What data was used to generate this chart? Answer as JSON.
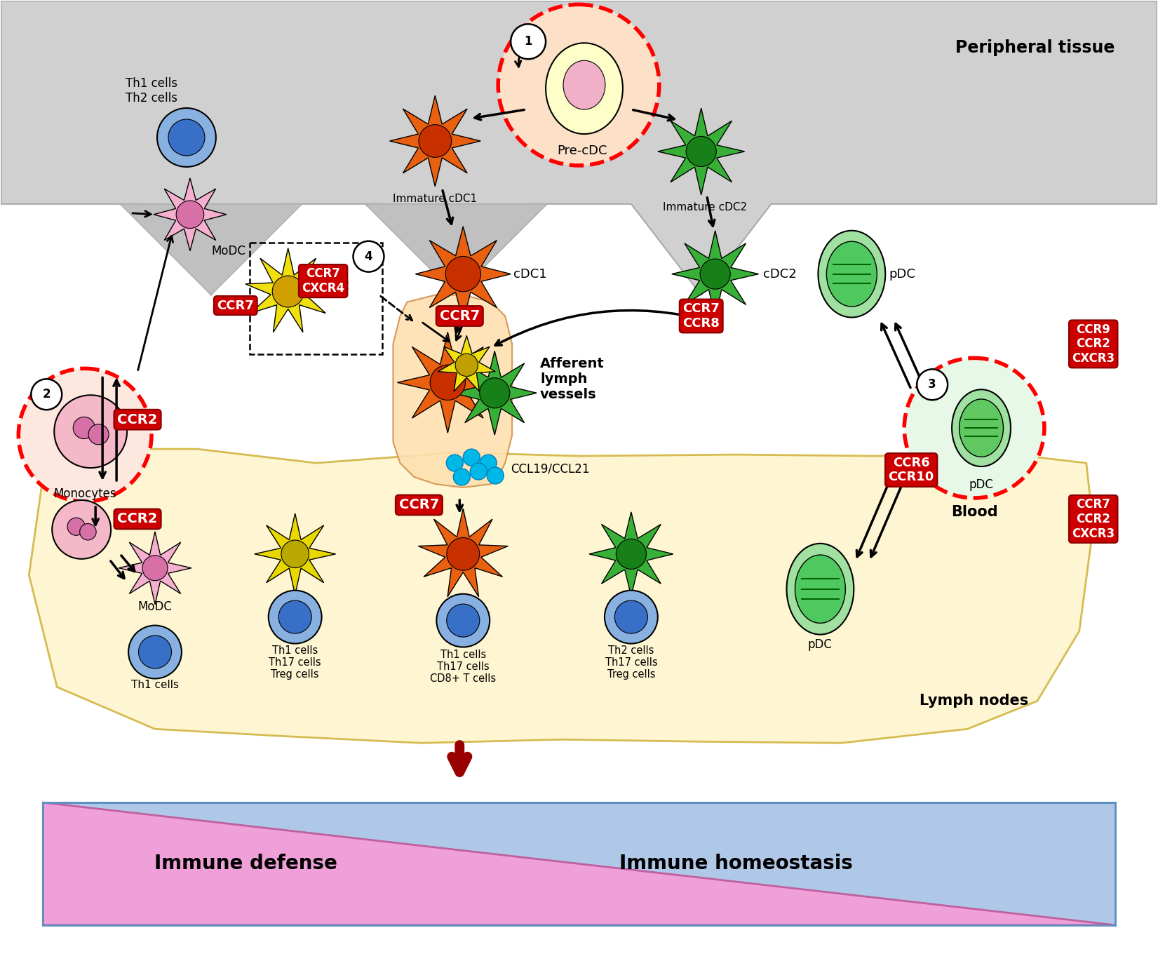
{
  "bg_color": "#ffffff",
  "gray_color": "#d0d0d0",
  "peach_color": "#fde8c8",
  "lymph_color": "#fef5d0",
  "vessel_color": "#fde0b0",
  "red_box_color": "#cc0000",
  "peripheral_tissue_label": "Peripheral tissue",
  "blood_label": "Blood",
  "lymph_nodes_label": "Lymph nodes",
  "immune_defense_label": "Immune defense",
  "immune_homeostasis_label": "Immune homeostasis",
  "ccl_label": "CCL19/CCL21",
  "afferent_label": "Afferent\nlymph\nvessels",
  "fig_w": 16.51,
  "fig_h": 13.9,
  "dpi": 100,
  "xlim": [
    0,
    1651
  ],
  "ylim": [
    0,
    1390
  ]
}
